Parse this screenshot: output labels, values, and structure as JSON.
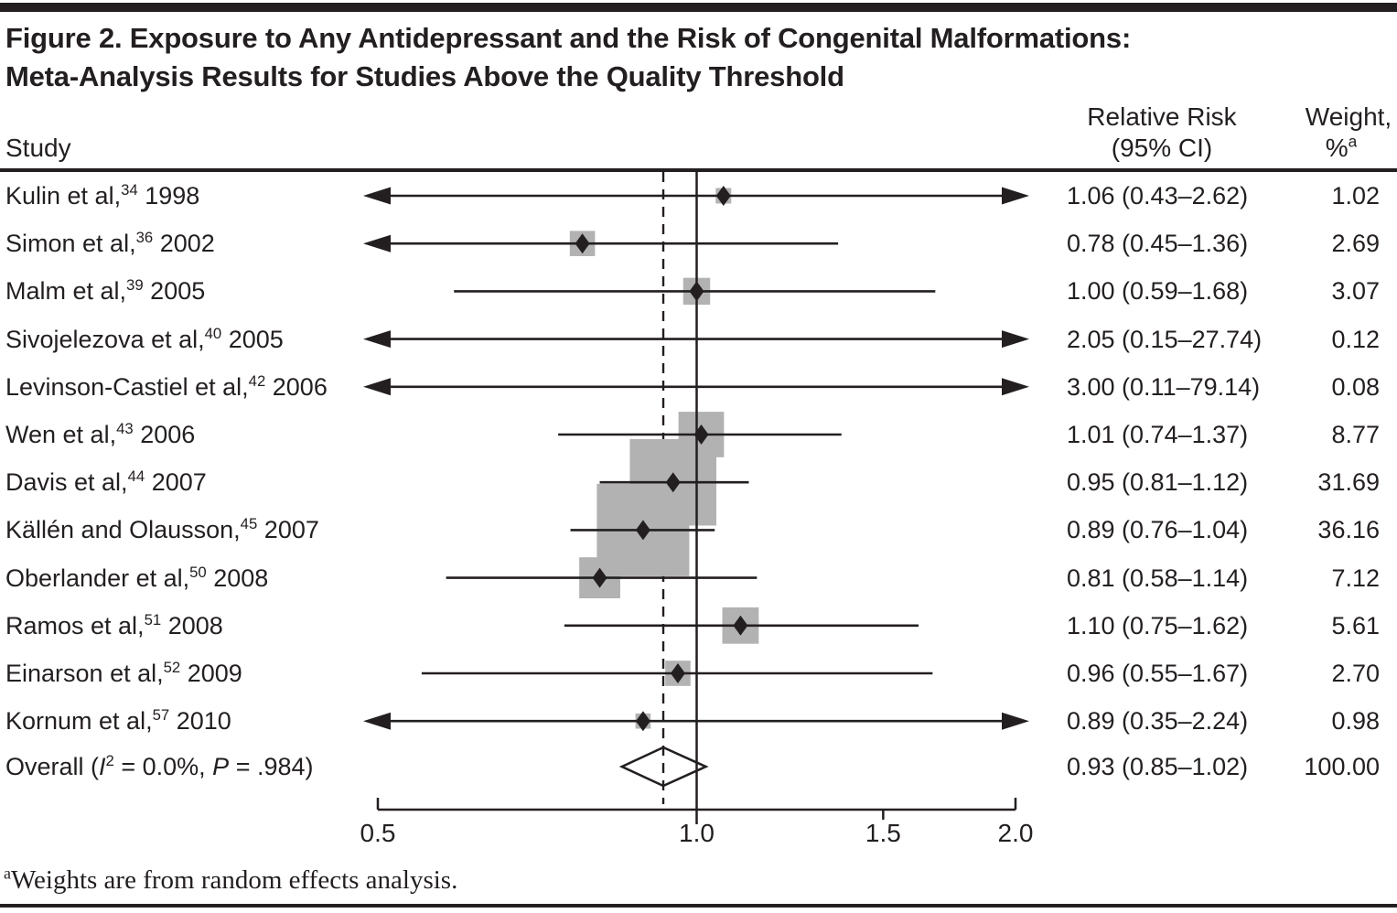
{
  "figure": {
    "title_lines": [
      "Figure 2. Exposure to Any Antidepressant and the Risk of Congenital Malformations:",
      "Meta-Analysis Results for Studies Above the Quality Threshold"
    ],
    "footnote_sup": "a",
    "footnote_text": "Weights are from random effects analysis."
  },
  "columns": {
    "study": "Study",
    "rr_line1": "Relative Risk",
    "rr_line2": "(95% CI)",
    "weight_line1": "Weight,",
    "weight_pct": "%",
    "weight_sup": "a"
  },
  "colors": {
    "ink": "#231f20",
    "square_gray": "#b2b2b2",
    "background": "#ffffff"
  },
  "chart_data": {
    "type": "forest",
    "x_scale": "log",
    "x_range": [
      0.5,
      2.0
    ],
    "x_ticks": [
      "0.5",
      "1.0",
      "1.5",
      "2.0"
    ],
    "x_tick_values": [
      0.5,
      1.0,
      1.5,
      2.0
    ],
    "reference_line": 1.0,
    "overall_dashed_line": 0.93,
    "grid": "off",
    "studies": [
      {
        "name": "Kulin et al,",
        "ref": "34",
        "year": "1998",
        "rr": 1.06,
        "lo": 0.43,
        "hi": 2.62,
        "rr_text": "1.06 (0.43–2.62)",
        "weight": "1.02"
      },
      {
        "name": "Simon et al,",
        "ref": "36",
        "year": "2002",
        "rr": 0.78,
        "lo": 0.45,
        "hi": 1.36,
        "rr_text": "0.78 (0.45–1.36)",
        "weight": "2.69"
      },
      {
        "name": "Malm et al,",
        "ref": "39",
        "year": "2005",
        "rr": 1.0,
        "lo": 0.59,
        "hi": 1.68,
        "rr_text": "1.00 (0.59–1.68)",
        "weight": "3.07"
      },
      {
        "name": "Sivojelezova et al,",
        "ref": "40",
        "year": "2005",
        "rr": 2.05,
        "lo": 0.15,
        "hi": 27.74,
        "rr_text": "2.05 (0.15–27.74)",
        "weight": "0.12"
      },
      {
        "name": "Levinson-Castiel et al,",
        "ref": "42",
        "year": "2006",
        "rr": 3.0,
        "lo": 0.11,
        "hi": 79.14,
        "rr_text": "3.00 (0.11–79.14)",
        "weight": "0.08"
      },
      {
        "name": "Wen et al,",
        "ref": "43",
        "year": "2006",
        "rr": 1.01,
        "lo": 0.74,
        "hi": 1.37,
        "rr_text": "1.01 (0.74–1.37)",
        "weight": "8.77"
      },
      {
        "name": "Davis et al,",
        "ref": "44",
        "year": "2007",
        "rr": 0.95,
        "lo": 0.81,
        "hi": 1.12,
        "rr_text": "0.95 (0.81–1.12)",
        "weight": "31.69"
      },
      {
        "name": "Källén and Olausson,",
        "ref": "45",
        "year": "2007",
        "rr": 0.89,
        "lo": 0.76,
        "hi": 1.04,
        "rr_text": "0.89 (0.76–1.04)",
        "weight": "36.16"
      },
      {
        "name": "Oberlander et al,",
        "ref": "50",
        "year": "2008",
        "rr": 0.81,
        "lo": 0.58,
        "hi": 1.14,
        "rr_text": "0.81 (0.58–1.14)",
        "weight": "7.12"
      },
      {
        "name": "Ramos et al,",
        "ref": "51",
        "year": "2008",
        "rr": 1.1,
        "lo": 0.75,
        "hi": 1.62,
        "rr_text": "1.10 (0.75–1.62)",
        "weight": "5.61"
      },
      {
        "name": "Einarson et al,",
        "ref": "52",
        "year": "2009",
        "rr": 0.96,
        "lo": 0.55,
        "hi": 1.67,
        "rr_text": "0.96 (0.55–1.67)",
        "weight": "2.70"
      },
      {
        "name": "Kornum et al,",
        "ref": "57",
        "year": "2010",
        "rr": 0.89,
        "lo": 0.35,
        "hi": 2.24,
        "rr_text": "0.89 (0.35–2.24)",
        "weight": "0.98"
      }
    ],
    "overall": {
      "label_prefix": "Overall (",
      "i_label": "I",
      "i_sup": "2",
      "i_rest": " = 0.0%, ",
      "p_label": "P",
      "p_rest": " = .984)",
      "rr": 0.93,
      "lo": 0.85,
      "hi": 1.02,
      "rr_text": "0.93 (0.85–1.02)",
      "weight": "100.00"
    }
  }
}
